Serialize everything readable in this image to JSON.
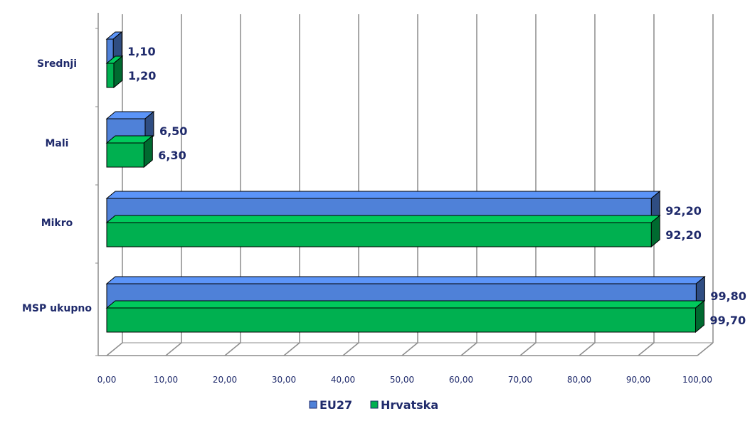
{
  "chart_data": {
    "type": "bar",
    "orientation": "horizontal",
    "style": "3d",
    "categories": [
      "MSP ukupno",
      "Mikro",
      "Mali",
      "Srednji"
    ],
    "series": [
      {
        "name": "EU27",
        "color": "#4f81d8",
        "values": [
          99.8,
          92.2,
          6.5,
          1.1
        ],
        "labels": [
          "99,80",
          "92,20",
          "6,50",
          "1,10"
        ]
      },
      {
        "name": "Hrvatska",
        "color": "#00b050",
        "values": [
          99.7,
          92.2,
          6.3,
          1.2
        ],
        "labels": [
          "99,70",
          "92,20",
          "6,30",
          "1,20"
        ]
      }
    ],
    "xlim": [
      0,
      100
    ],
    "xticks": [
      "0,00",
      "10,00",
      "20,00",
      "30,00",
      "40,00",
      "50,00",
      "60,00",
      "70,00",
      "80,00",
      "90,00",
      "100,00"
    ],
    "grid": true,
    "legend": "bottom"
  }
}
